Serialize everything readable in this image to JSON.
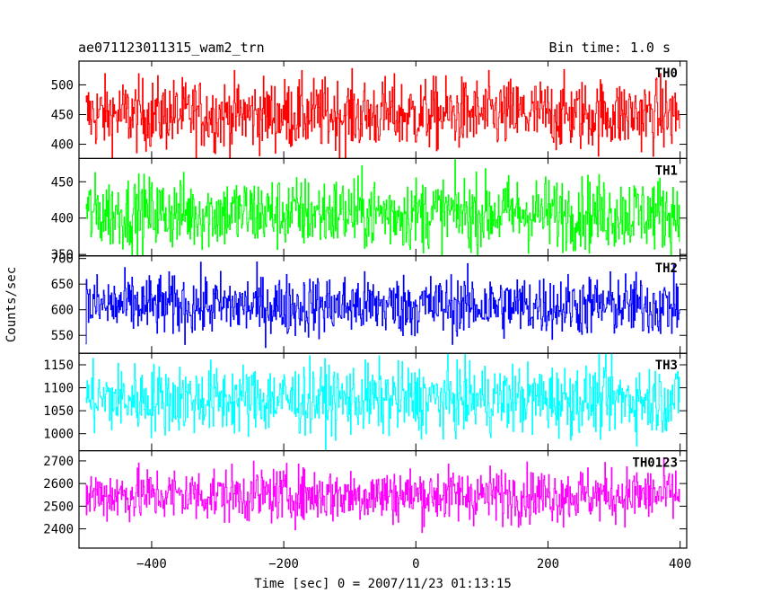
{
  "chart_data": {
    "type": "line",
    "title_left": "ae071123011315_wam2_trn",
    "title_right": "Bin time: 1.0 s",
    "xlabel": "Time [sec] 0 = 2007/11/23 01:13:15",
    "ylabel": "Counts/sec",
    "xlim": [
      -510,
      410
    ],
    "x_data_range": [
      -500,
      400
    ],
    "bin_time_s": 1.0,
    "x_ticks": [
      -400,
      -200,
      0,
      200,
      400
    ],
    "panels": [
      {
        "name": "TH0",
        "color": "#ff0000",
        "ylim": [
          376,
          540
        ],
        "y_ticks": [
          400,
          450,
          500
        ],
        "y_center": 450,
        "y_spread": 30
      },
      {
        "name": "TH1",
        "color": "#00ff00",
        "ylim": [
          348,
          482
        ],
        "y_ticks": [
          350,
          400,
          450
        ],
        "y_center": 407,
        "y_spread": 25
      },
      {
        "name": "TH2",
        "color": "#0000ff",
        "ylim": [
          515,
          705
        ],
        "y_ticks": [
          550,
          600,
          650,
          700
        ],
        "y_center": 608,
        "y_spread": 30
      },
      {
        "name": "TH3",
        "color": "#00ffff",
        "ylim": [
          963,
          1175
        ],
        "y_ticks": [
          1000,
          1050,
          1100,
          1150
        ],
        "y_center": 1075,
        "y_spread": 38
      },
      {
        "name": "TH0123",
        "color": "#ff00ff",
        "ylim": [
          2315,
          2745
        ],
        "y_ticks": [
          2400,
          2500,
          2600,
          2700
        ],
        "y_center": 2550,
        "y_spread": 60
      }
    ]
  }
}
